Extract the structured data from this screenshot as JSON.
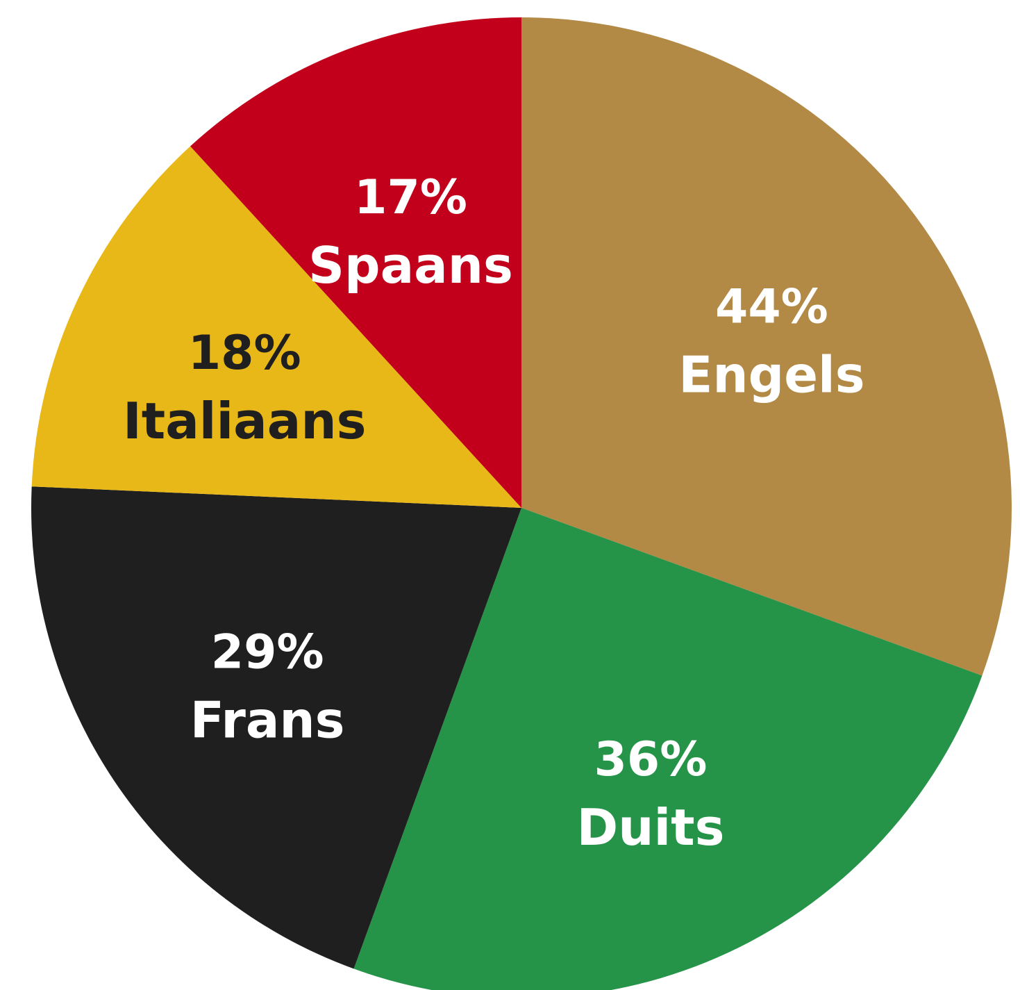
{
  "chart_data": {
    "type": "pie",
    "slices": [
      {
        "label": "Engels",
        "pct_text": "44%",
        "value": 44,
        "color": "#b28a46",
        "text_color": "#ffffff"
      },
      {
        "label": "Duits",
        "pct_text": "36%",
        "value": 36,
        "color": "#259448",
        "text_color": "#ffffff"
      },
      {
        "label": "Frans",
        "pct_text": "29%",
        "value": 29,
        "color": "#1f1f1f",
        "text_color": "#ffffff"
      },
      {
        "label": "Italiaans",
        "pct_text": "18%",
        "value": 18,
        "color": "#e8b718",
        "text_color": "#1f1f1f"
      },
      {
        "label": "Spaans",
        "pct_text": "17%",
        "value": 17,
        "color": "#c2001b",
        "text_color": "#ffffff"
      }
    ],
    "start_angle_deg": 0,
    "direction": "clockwise",
    "legend": "none"
  }
}
